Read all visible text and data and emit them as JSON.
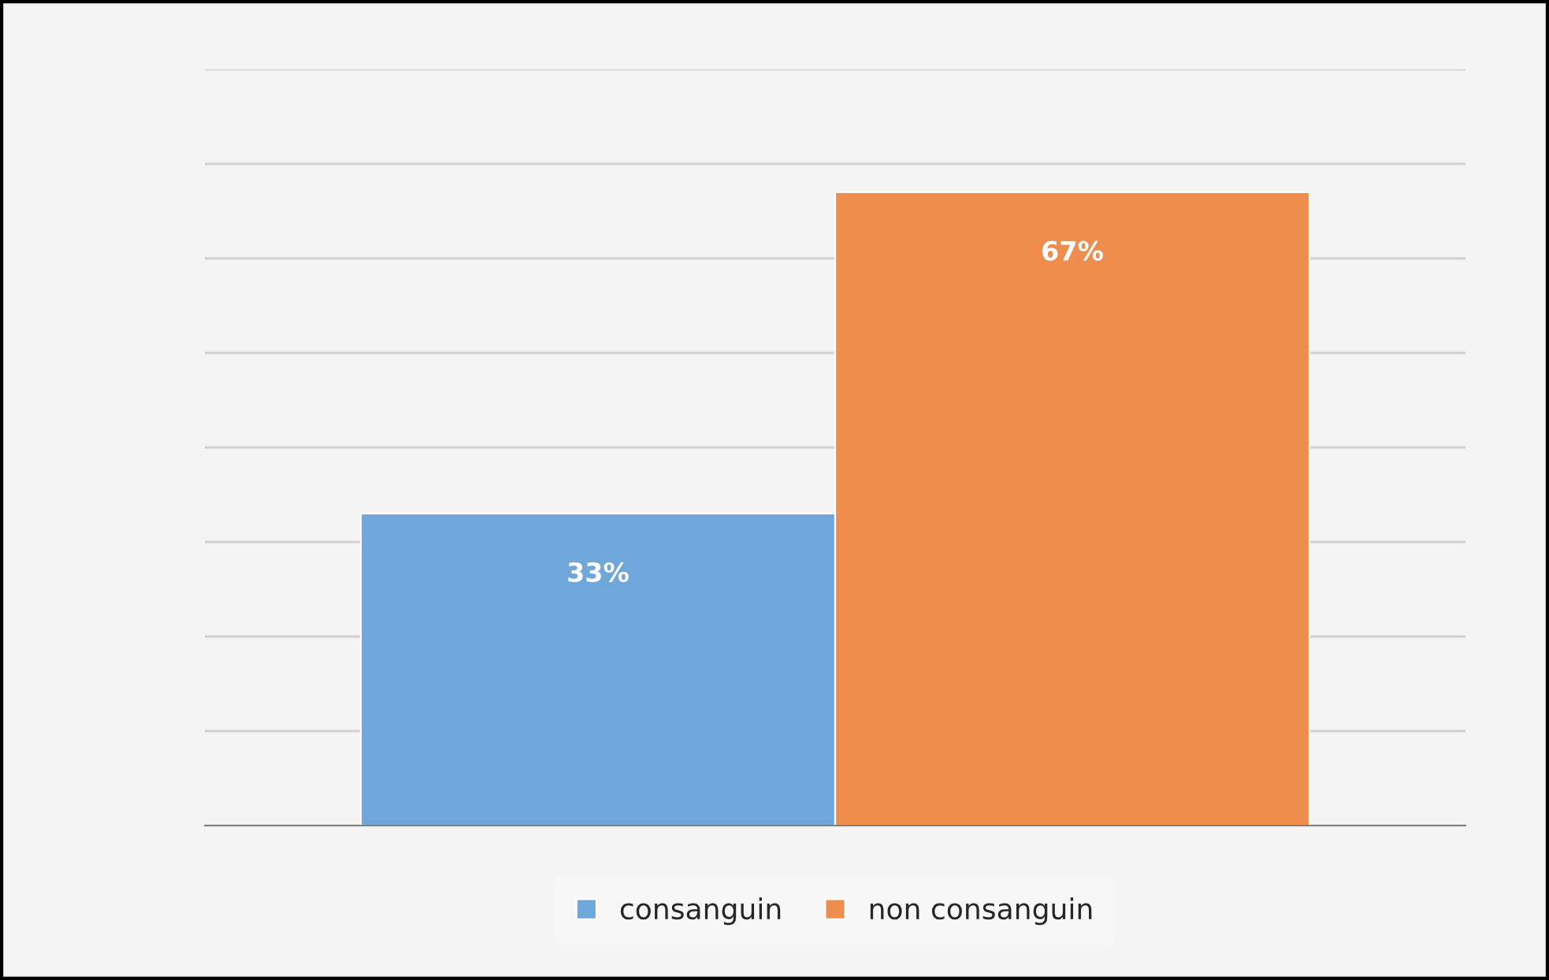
{
  "chart_data": {
    "type": "bar",
    "categories": [
      null
    ],
    "series": [
      {
        "name": "consanguin",
        "color": "#70a7db",
        "values": [
          33
        ],
        "value_labels": [
          "33%"
        ]
      },
      {
        "name": "non consanguin",
        "color": "#ef8d4f",
        "values": [
          67
        ],
        "value_labels": [
          "67%"
        ]
      }
    ],
    "ylim": [
      0,
      80
    ],
    "yticks": [
      {
        "value": 0,
        "label": null
      },
      {
        "value": 10,
        "label": null
      },
      {
        "value": 20,
        "label": null
      },
      {
        "value": 30,
        "label": null
      },
      {
        "value": 40,
        "label": null
      },
      {
        "value": 50,
        "label": null
      },
      {
        "value": 60,
        "label": null
      },
      {
        "value": 70,
        "label": null
      },
      {
        "value": 80,
        "label": null
      }
    ],
    "grid": "y",
    "legend": "bottom"
  }
}
